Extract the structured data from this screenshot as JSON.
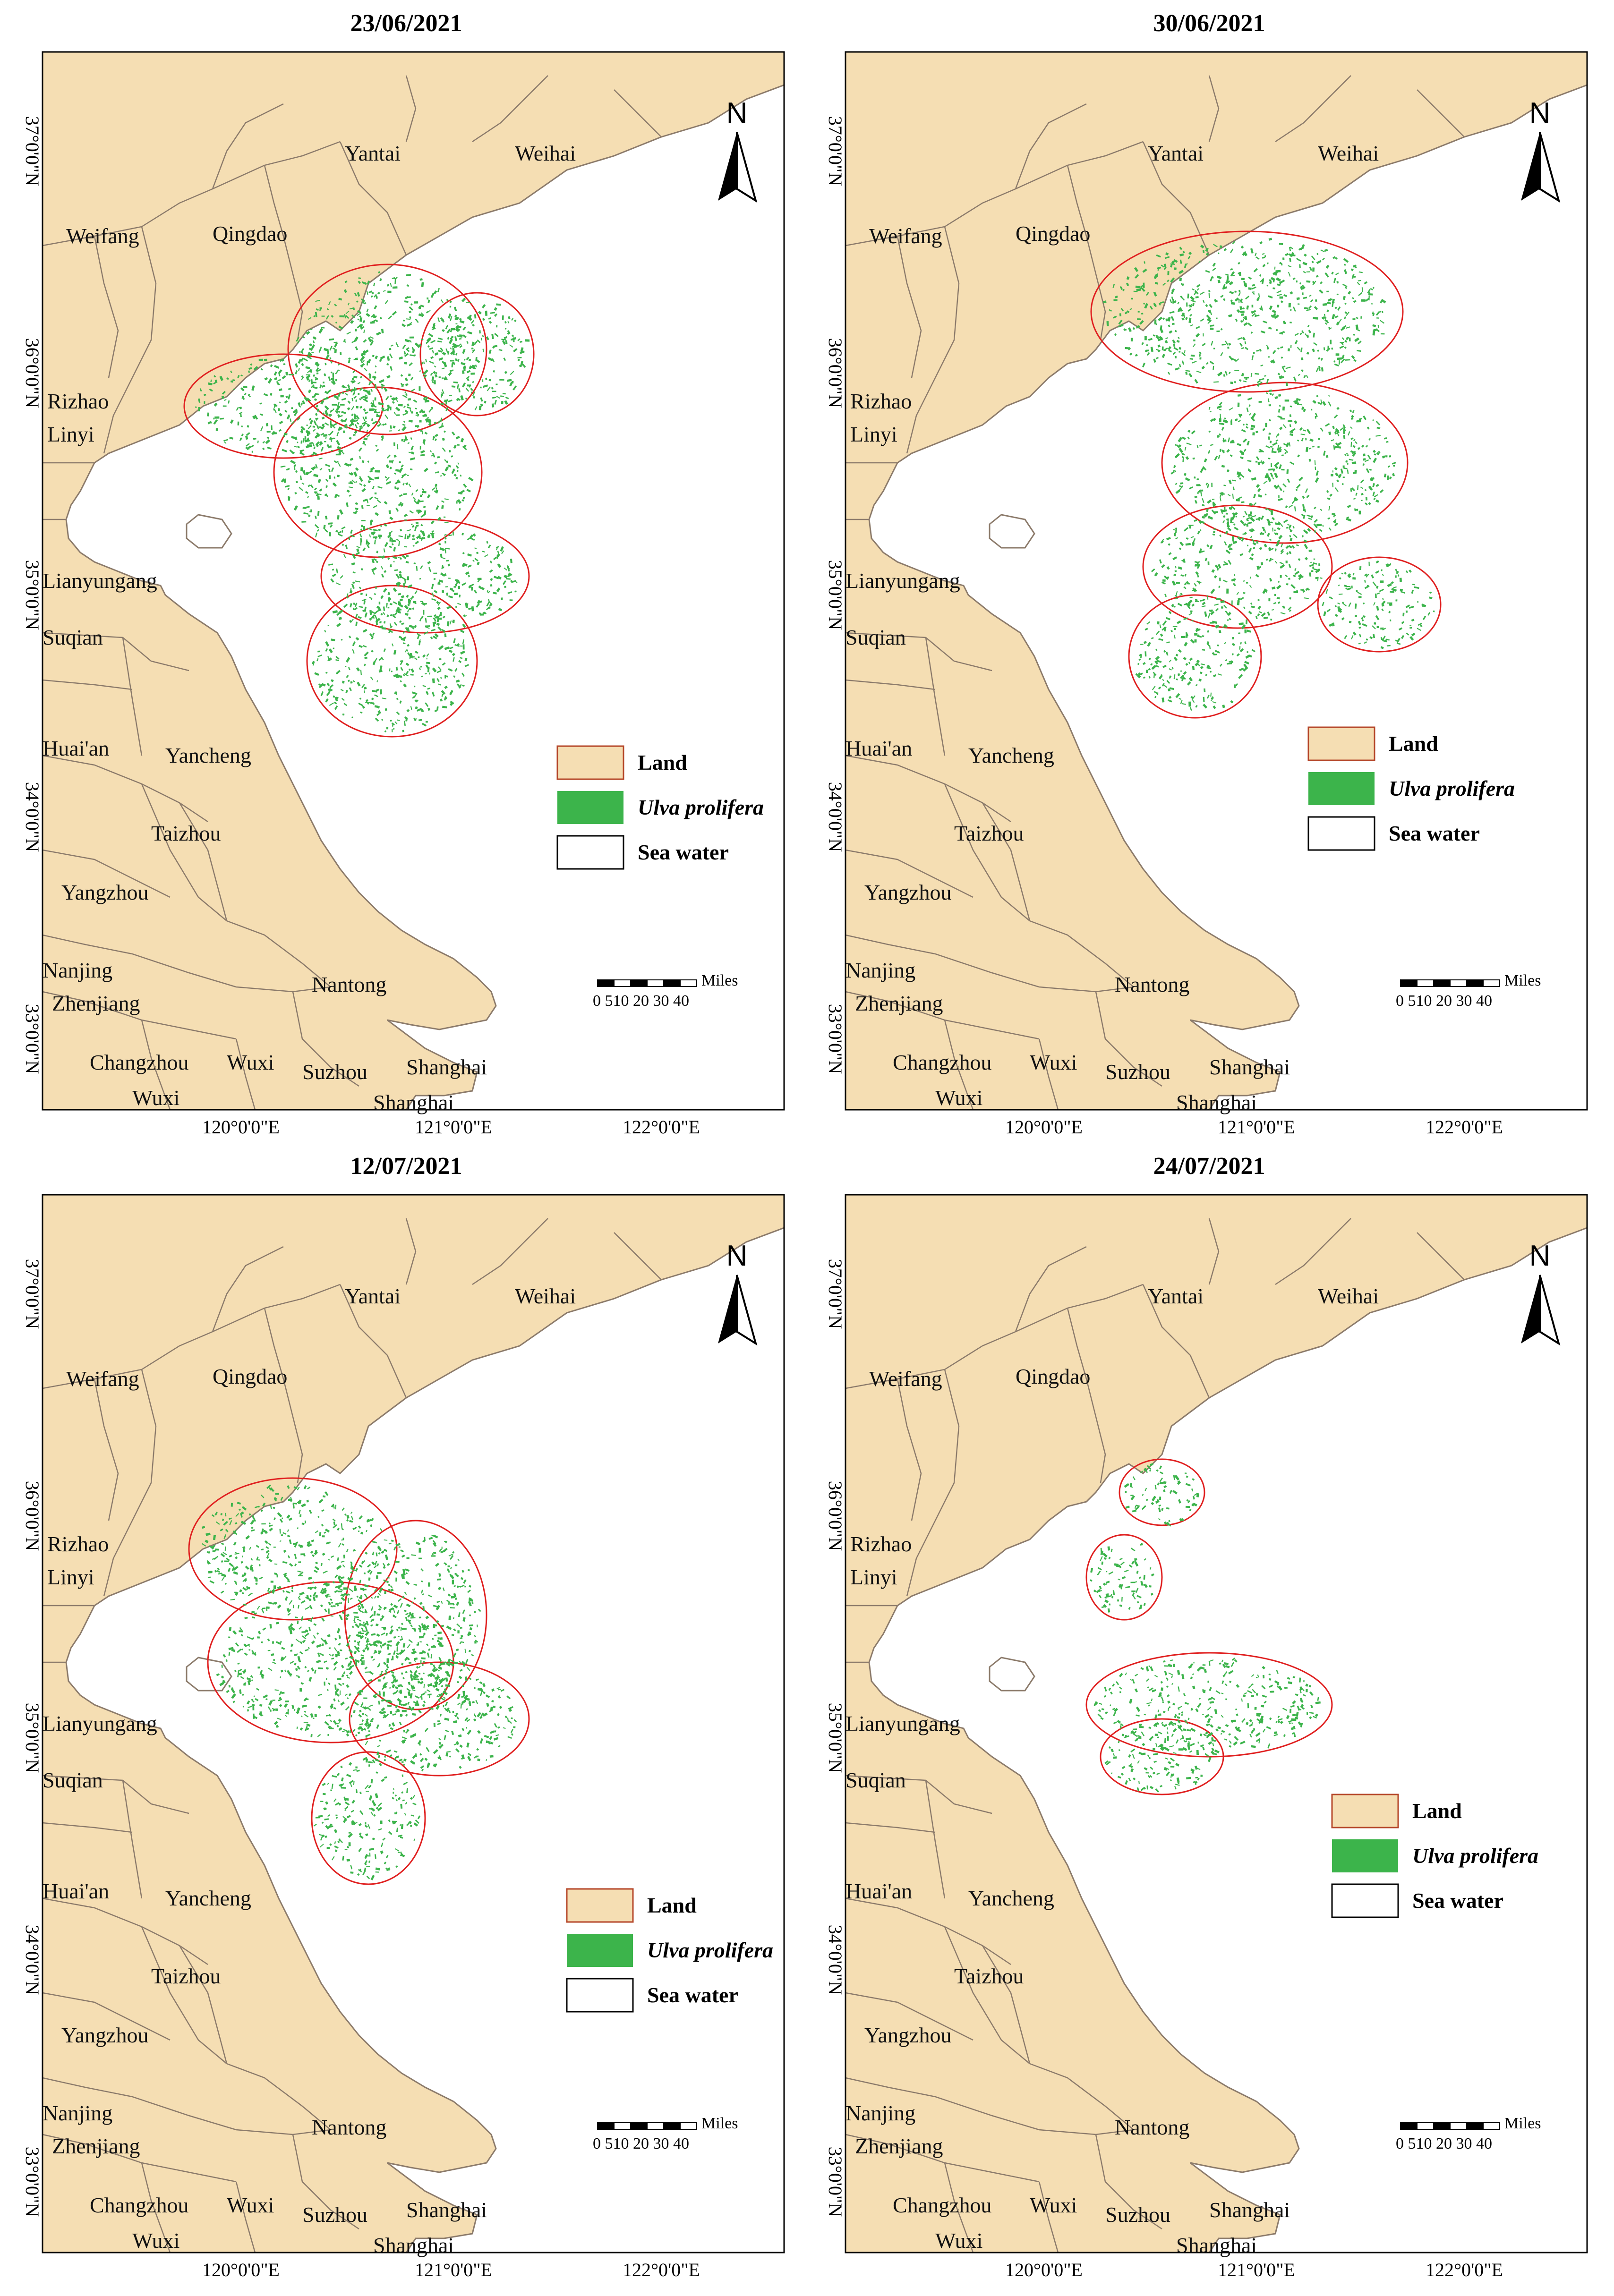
{
  "colors": {
    "land": "#f5deb3",
    "ulva": "#3cb44b",
    "ulva_border": "#e02020",
    "sea": "#ffffff",
    "boundary": "#8c7b6b"
  },
  "panels": [
    {
      "date": "23/06/2021"
    },
    {
      "date": "30/06/2021"
    },
    {
      "date": "12/07/2021"
    },
    {
      "date": "24/07/2021"
    }
  ],
  "cities": {
    "yantai": "Yantai",
    "weihai": "Weihai",
    "weifang": "Weifang",
    "qingdao": "Qingdao",
    "rizhao": "Rizhao",
    "linyi": "Linyi",
    "lianyungang": "Lianyungang",
    "suqian": "Suqian",
    "huaian": "Huai'an",
    "yancheng": "Yancheng",
    "taizhou": "Taizhou",
    "yangzhou": "Yangzhou",
    "nanjing": "Nanjing",
    "zhenjiang": "Zhenjiang",
    "nantong": "Nantong",
    "changzhou": "Changzhou",
    "wuxi_a": "Wuxi",
    "wuxi_b": "Wuxi",
    "suzhou": "Suzhou",
    "shanghai_a": "Shanghai",
    "shanghai_b": "Shanghai"
  },
  "axes": {
    "x_labels": [
      "120°0'0\"E",
      "121°0'0\"E",
      "122°0'0\"E"
    ],
    "y_labels": [
      "37°0'0\"N",
      "36°0'0\"N",
      "35°0'0\"N",
      "34°0'0\"N",
      "33°0'0\"N"
    ]
  },
  "legend": {
    "land": "Land",
    "ulva": "Ulva prolifera",
    "sea": "Sea water"
  },
  "north_arrow": {
    "label": "N",
    "icon": "north-arrow-icon"
  },
  "scale_bar": {
    "unit": "Miles",
    "ticks": "0 510 20 30 40"
  }
}
